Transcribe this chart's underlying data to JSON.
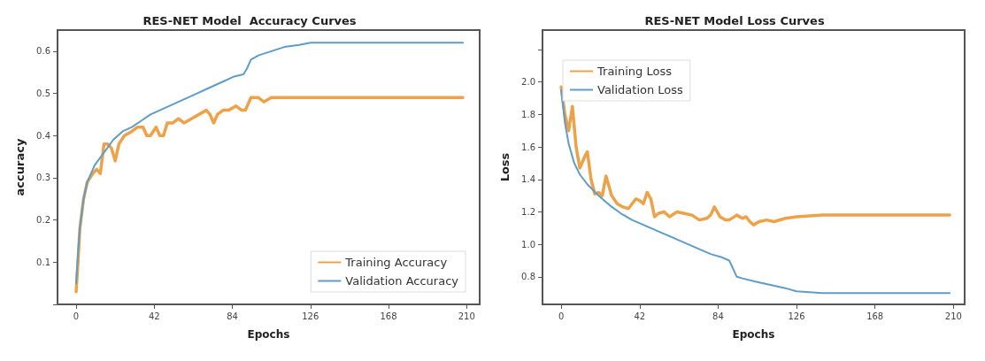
{
  "chart_data": [
    {
      "type": "line",
      "title": "RES-NET Model  Accuracy Curves",
      "xlabel": "Epochs",
      "ylabel": "accuracy",
      "xlim": [
        -10,
        217
      ],
      "ylim": [
        0,
        0.65
      ],
      "xticks": [
        0,
        42,
        84,
        126,
        168,
        210
      ],
      "yticks": [
        {
          "value": 0,
          "label": null
        },
        0.1,
        0.2,
        0.3,
        0.4,
        0.5,
        0.6
      ],
      "grid": false,
      "legend": "bottom right",
      "marker": "none",
      "line_style": "solid",
      "series": [
        {
          "name": "Training Accuracy",
          "color": "#eda24a",
          "x": [
            0,
            1,
            2,
            4,
            6,
            9,
            11,
            13,
            15,
            17,
            19,
            21,
            23,
            26,
            30,
            33,
            36,
            38,
            40,
            43,
            45,
            47,
            49,
            52,
            55,
            58,
            62,
            66,
            70,
            72,
            74,
            76,
            79,
            82,
            86,
            89,
            91,
            94,
            98,
            101,
            105,
            110,
            120,
            140,
            160,
            180,
            208
          ],
          "values": [
            0.03,
            0.1,
            0.18,
            0.25,
            0.29,
            0.31,
            0.32,
            0.31,
            0.38,
            0.38,
            0.37,
            0.34,
            0.38,
            0.4,
            0.41,
            0.42,
            0.42,
            0.4,
            0.4,
            0.42,
            0.4,
            0.4,
            0.43,
            0.43,
            0.44,
            0.43,
            0.44,
            0.45,
            0.46,
            0.45,
            0.43,
            0.45,
            0.46,
            0.46,
            0.47,
            0.46,
            0.46,
            0.49,
            0.49,
            0.48,
            0.49,
            0.49,
            0.49,
            0.49,
            0.49,
            0.49,
            0.49
          ]
        },
        {
          "name": "Validation Accuracy",
          "color": "#5f9cc8",
          "x": [
            0,
            1,
            2,
            4,
            6,
            10,
            15,
            20,
            25,
            30,
            35,
            40,
            45,
            50,
            55,
            60,
            65,
            70,
            75,
            80,
            85,
            90,
            92,
            94,
            98,
            105,
            112,
            120,
            126,
            140,
            150,
            170,
            190,
            208
          ],
          "values": [
            0.05,
            0.12,
            0.18,
            0.25,
            0.29,
            0.33,
            0.36,
            0.39,
            0.41,
            0.42,
            0.435,
            0.45,
            0.46,
            0.47,
            0.48,
            0.49,
            0.5,
            0.51,
            0.52,
            0.53,
            0.54,
            0.545,
            0.56,
            0.58,
            0.59,
            0.6,
            0.61,
            0.615,
            0.62,
            0.62,
            0.62,
            0.62,
            0.62,
            0.62
          ]
        }
      ]
    },
    {
      "type": "line",
      "title": "RES-NET Model Loss Curves",
      "xlabel": "Epochs",
      "ylabel": "Loss",
      "xlim": [
        -10,
        216
      ],
      "ylim": [
        0.63,
        2.32
      ],
      "xticks": [
        0,
        42,
        84,
        126,
        168,
        210
      ],
      "yticks": [
        0.8,
        {
          "value": 1,
          "label": "1.0"
        },
        1.2,
        1.4,
        1.6,
        1.8,
        {
          "value": 2,
          "label": "2.0"
        },
        {
          "value": 2.2,
          "label": null
        }
      ],
      "grid": false,
      "legend": "top left",
      "marker": "none",
      "line_style": "solid",
      "series": [
        {
          "name": "Training Loss",
          "color": "#eda24a",
          "x": [
            0,
            2,
            4,
            6,
            8,
            10,
            13,
            14,
            16,
            18,
            20,
            22,
            24,
            27,
            30,
            33,
            36,
            40,
            42,
            44,
            46,
            48,
            50,
            52,
            55,
            58,
            62,
            66,
            70,
            74,
            78,
            80,
            82,
            85,
            88,
            90,
            94,
            97,
            99,
            101,
            103,
            106,
            110,
            114,
            120,
            126,
            140,
            160,
            180,
            208
          ],
          "values": [
            1.97,
            1.8,
            1.7,
            1.85,
            1.6,
            1.47,
            1.55,
            1.57,
            1.4,
            1.31,
            1.32,
            1.3,
            1.42,
            1.3,
            1.25,
            1.23,
            1.22,
            1.28,
            1.27,
            1.25,
            1.32,
            1.28,
            1.17,
            1.19,
            1.2,
            1.17,
            1.2,
            1.19,
            1.18,
            1.15,
            1.16,
            1.18,
            1.23,
            1.17,
            1.15,
            1.15,
            1.18,
            1.16,
            1.17,
            1.14,
            1.12,
            1.14,
            1.15,
            1.14,
            1.16,
            1.17,
            1.18,
            1.18,
            1.18,
            1.18
          ]
        },
        {
          "name": "Validation Loss",
          "color": "#5f9cc8",
          "x": [
            0,
            2,
            4,
            7,
            10,
            14,
            20,
            26,
            32,
            38,
            44,
            50,
            56,
            62,
            68,
            74,
            80,
            86,
            90,
            92,
            94,
            97,
            104,
            112,
            120,
            126,
            140,
            160,
            180,
            208
          ],
          "values": [
            1.95,
            1.75,
            1.62,
            1.5,
            1.43,
            1.37,
            1.3,
            1.24,
            1.19,
            1.15,
            1.12,
            1.09,
            1.06,
            1.03,
            1.0,
            0.97,
            0.94,
            0.92,
            0.9,
            0.85,
            0.8,
            0.79,
            0.77,
            0.75,
            0.73,
            0.71,
            0.7,
            0.7,
            0.7,
            0.7
          ]
        }
      ]
    }
  ]
}
